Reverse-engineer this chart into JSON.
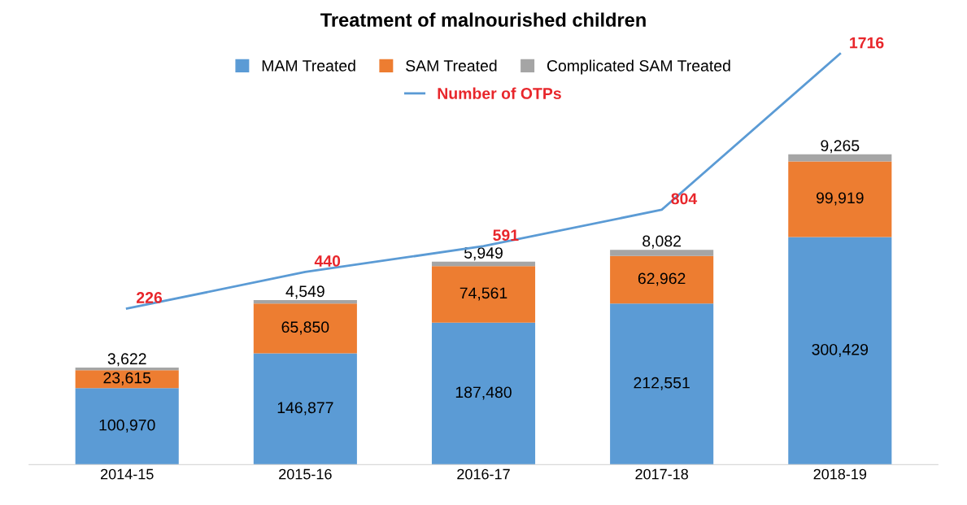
{
  "chart_data": {
    "type": "bar",
    "title": "Treatment of malnourished children",
    "categories": [
      "2014-15",
      "2015-16",
      "2016-17",
      "2017-18",
      "2018-19"
    ],
    "stacked": true,
    "legend": "top",
    "grid": false,
    "tick_labels": "x",
    "series": [
      {
        "name": "MAM Treated",
        "color": "#5b9bd5",
        "values": [
          100970,
          146877,
          187480,
          212551,
          300429
        ],
        "value_labels": [
          "100,970",
          "146,877",
          "187,480",
          "212,551",
          "300,429"
        ]
      },
      {
        "name": "SAM Treated",
        "color": "#ed7d31",
        "values": [
          23615,
          65850,
          74561,
          62962,
          99919
        ],
        "value_labels": [
          "23,615",
          "65,850",
          "74,561",
          "62,962",
          "99,919"
        ]
      },
      {
        "name": "Complicated SAM Treated",
        "color": "#a5a5a5",
        "values": [
          3622,
          4549,
          5949,
          8082,
          9265
        ],
        "value_labels": [
          "3,622",
          "4,549",
          "5,949",
          "8,082",
          "9,265"
        ]
      },
      {
        "name": "Number of OTPs",
        "type": "line",
        "axis": "y2",
        "color": "#5b9bd5",
        "marker": "none",
        "values": [
          226,
          440,
          591,
          804,
          1716
        ],
        "value_labels": [
          "226",
          "440",
          "591",
          "804",
          "1716"
        ]
      }
    ]
  }
}
